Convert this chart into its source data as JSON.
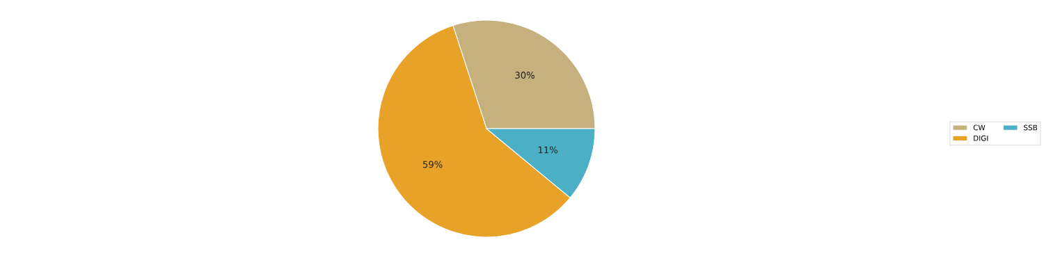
{
  "chart_data": {
    "type": "pie",
    "categories": [
      "CW",
      "DIGI",
      "SSB"
    ],
    "values": [
      30,
      59,
      11
    ],
    "colors": [
      "#c5b07e",
      "#e9a228",
      "#4bb0c5"
    ],
    "value_labels": [
      "30%",
      "59%",
      "11%"
    ],
    "legend": "right"
  }
}
